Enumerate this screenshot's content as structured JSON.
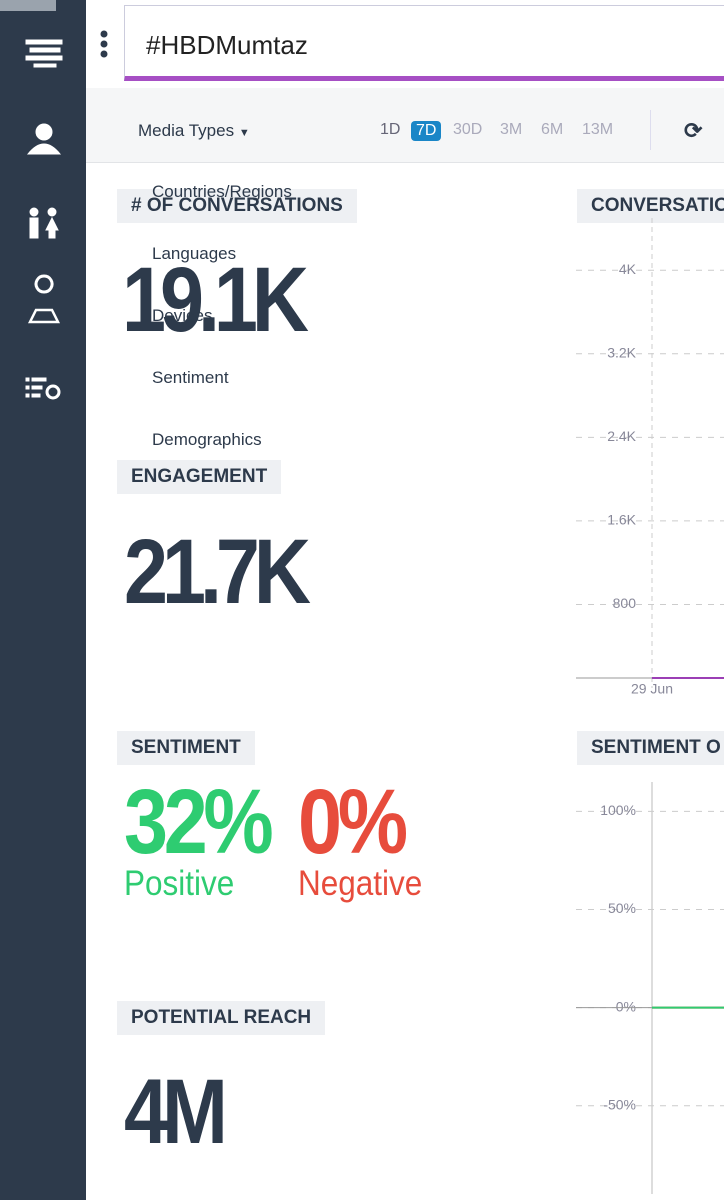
{
  "search": {
    "query": "#HBDMumtaz"
  },
  "toolbar": {
    "filter": "Media Types",
    "ranges": [
      "1D",
      "7D",
      "30D",
      "3M",
      "6M",
      "13M"
    ],
    "active_range": "7D"
  },
  "dropdown": {
    "items": [
      "Countries/Regions",
      "Languages",
      "Devices",
      "Sentiment",
      "Demographics"
    ]
  },
  "metrics": {
    "conversations": {
      "label": "# OF CONVERSATIONS",
      "value": "19.1K"
    },
    "engagement": {
      "label": "ENGAGEMENT",
      "value": "21.7K"
    },
    "sentiment": {
      "label": "SENTIMENT",
      "positive": {
        "value": "32%",
        "label": "Positive",
        "color": "#2ecc71"
      },
      "negative": {
        "value": "0%",
        "label": "Negative",
        "color": "#e74c3c"
      }
    },
    "reach": {
      "label": "POTENTIAL REACH",
      "value": "4M"
    }
  },
  "charts": [
    {
      "type": "line",
      "title": "CONVERSATIO",
      "categories": [
        "29 Jun",
        null
      ],
      "series": [
        {
          "color": "#9b3fb5",
          "values": [
            0,
            0
          ]
        }
      ],
      "ylim": [
        0,
        4500
      ],
      "yticks": [
        800,
        {
          "value": 1600,
          "label": "1.6K"
        },
        {
          "value": 2400,
          "label": "2.4K"
        },
        {
          "value": 3200,
          "label": "3.2K"
        },
        {
          "value": 4000,
          "label": "4K"
        }
      ]
    },
    {
      "type": "line",
      "title": "SENTIMENT O",
      "categories": [
        null,
        null
      ],
      "series": [
        {
          "color": "#e74c3c",
          "values": [
            0,
            0
          ]
        },
        {
          "color": "#2ecc71",
          "values": [
            0,
            0
          ]
        }
      ],
      "ylim": [
        -95,
        115
      ],
      "yticks": [
        {
          "value": -50,
          "label": "-50%"
        },
        {
          "value": 0,
          "label": "0%"
        },
        {
          "value": 50,
          "label": "50%"
        },
        {
          "value": 100,
          "label": "100%"
        }
      ]
    }
  ]
}
